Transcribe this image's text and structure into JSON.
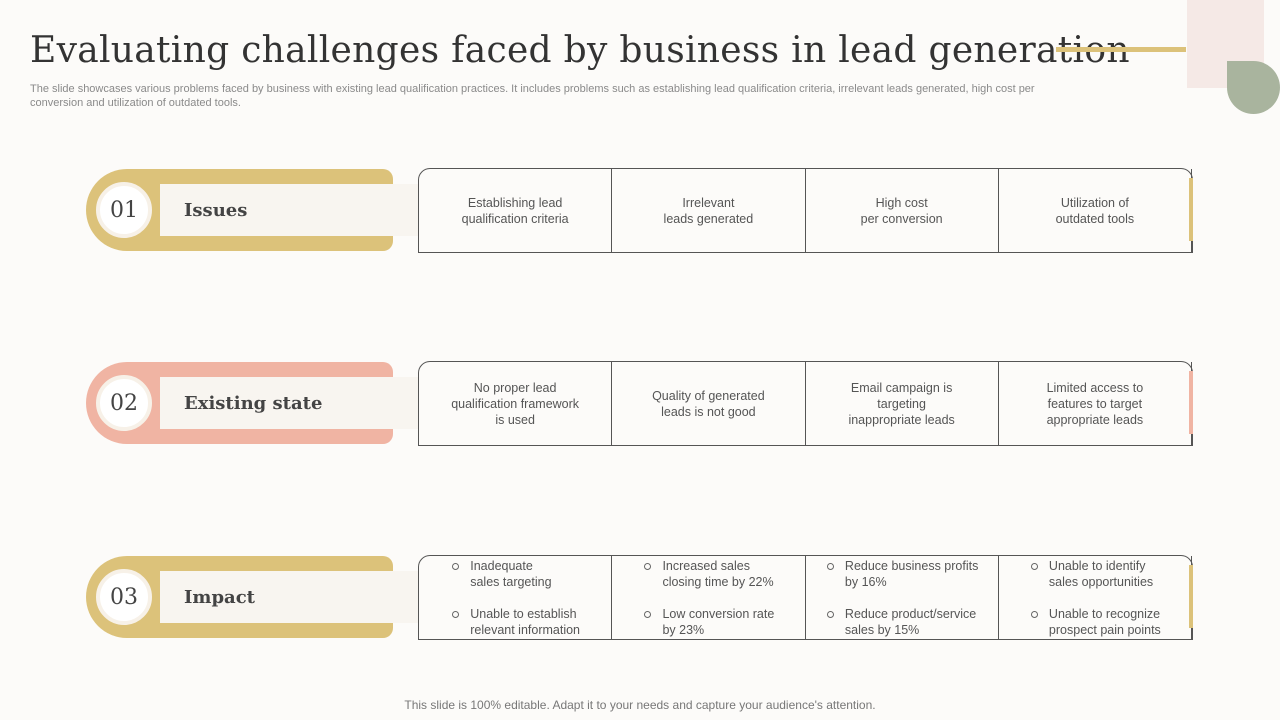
{
  "title": "Evaluating challenges faced by business in lead generation",
  "subtitle": "The slide showcases various problems faced by business with existing lead qualification practices. It includes problems such as establishing lead qualification criteria, irrelevant leads generated, high cost per conversion and utilization of outdated tools.",
  "colors": {
    "gold": "#dcc27a",
    "salmon": "#f0b4a3",
    "sage": "#a9b49e",
    "blush": "#f5e9e6"
  },
  "rows": [
    {
      "number": "01",
      "label": "Issues",
      "color": "#dcc27a",
      "cells": [
        "Establishing lead\nqualification  criteria",
        "Irrelevant\nleads generated",
        "High cost\nper conversion",
        "Utilization of\noutdated tools"
      ]
    },
    {
      "number": "02",
      "label": "Existing state",
      "color": "#f0b4a3",
      "cells": [
        "No proper lead\nqualification framework\nis used",
        "Quality of generated\nleads is not good",
        "Email campaign is\ntargeting\ninappropriate  leads",
        "Limited access to\nfeatures to target\nappropriate  leads"
      ]
    },
    {
      "number": "03",
      "label": "Impact",
      "color": "#dcc27a",
      "bullets": [
        [
          "Inadequate\nsales targeting",
          "Unable  to establish\nrelevant  information"
        ],
        [
          "Increased  sales\nclosing time by 22%",
          "Low conversion  rate\nby 23%"
        ],
        [
          "Reduce business profits\nby 16%",
          "Reduce product/service\nsales by 15%"
        ],
        [
          "Unable  to identify\nsales opportunities",
          "Unable  to recognize\nprospect pain points"
        ]
      ]
    }
  ],
  "footer": "This slide is 100% editable. Adapt it to your needs and capture your audience's attention."
}
